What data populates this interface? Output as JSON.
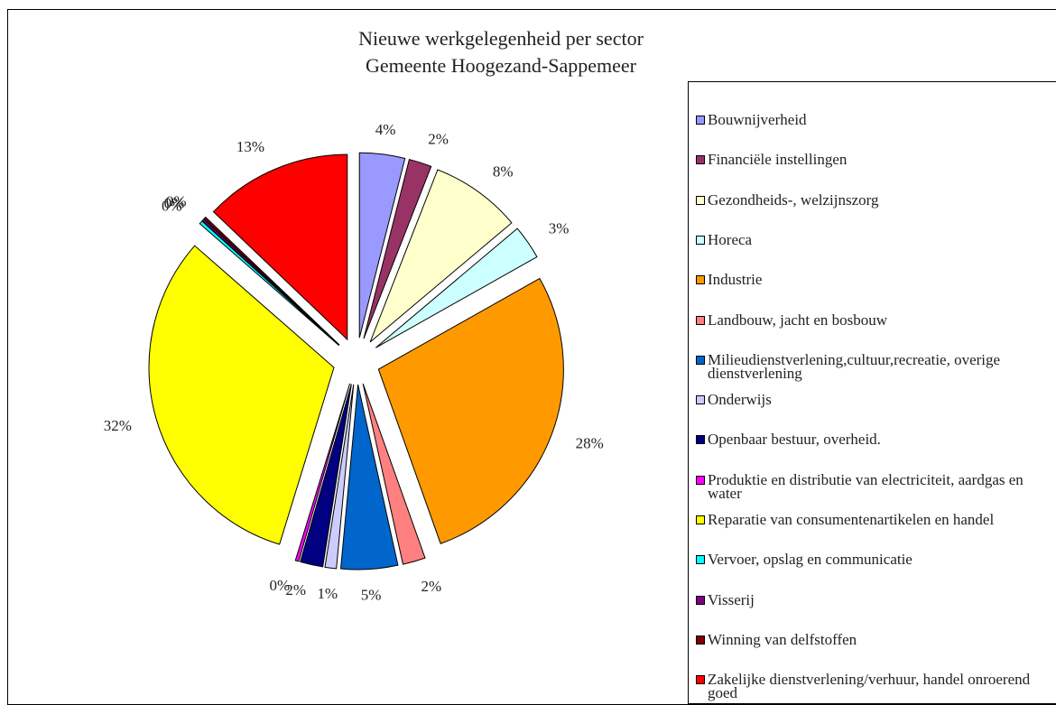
{
  "chart_data": {
    "type": "pie",
    "title": "Nieuwe werkgelegenheid per sector",
    "subtitle": "Gemeente Hoogezand-Sappemeer",
    "categories": [
      "Bouwnijverheid",
      "Financiële instellingen",
      "Gezondheids-, welzijnszorg",
      "Horeca",
      "Industrie",
      "Landbouw, jacht en bosbouw",
      "Milieudienstverlening,cultuur,recreatie, overige dienstverlening",
      "Onderwijs",
      "Openbaar bestuur, overheid.",
      "Produktie en distributie van electriciteit, aardgas en water",
      "Reparatie van consumentenartikelen en handel",
      "Vervoer, opslag en communicatie",
      "Visserij",
      "Winning van delfstoffen",
      "Zakelijke dienstverlening/verhuur, handel onroerend goed"
    ],
    "values": [
      4,
      2,
      8,
      3,
      28,
      2,
      5,
      1,
      2,
      0.3,
      32,
      0.3,
      0.2,
      0.2,
      13
    ],
    "value_labels": [
      "4%",
      "2%",
      "8%",
      "3%",
      "28%",
      "2%",
      "5%",
      "1%",
      "2%",
      "0%",
      "32%",
      "0%",
      "0%",
      "0%",
      "13%"
    ],
    "colors": [
      "#9999ff",
      "#993366",
      "#ffffcc",
      "#ccffff",
      "#ff9900",
      "#ff8080",
      "#0066cc",
      "#ccccff",
      "#000080",
      "#ff00ff",
      "#ffff00",
      "#00ffff",
      "#800080",
      "#800000",
      "#ff0000"
    ],
    "exploded": true,
    "legend": "right"
  }
}
